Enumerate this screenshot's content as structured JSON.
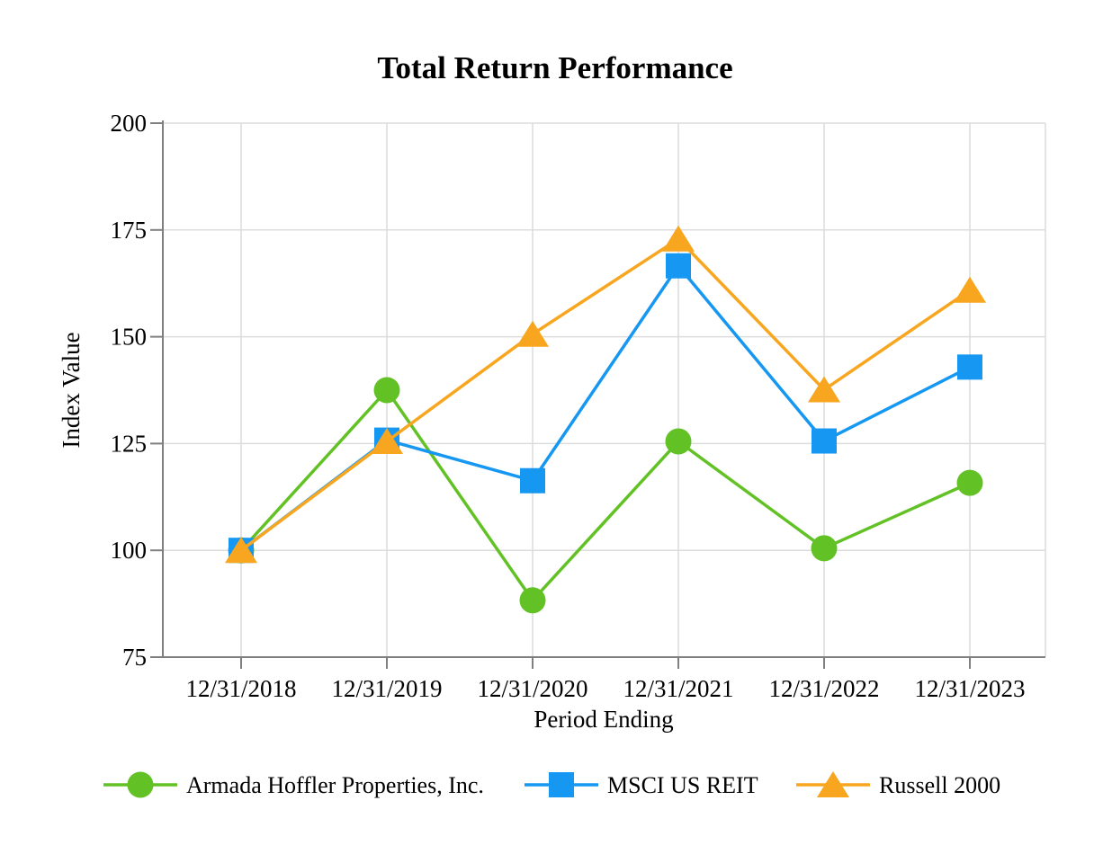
{
  "chart_data": {
    "type": "line",
    "title": "Total Return Performance",
    "xlabel": "Period Ending",
    "ylabel": "Index Value",
    "ylim": [
      75,
      200
    ],
    "yticks": [
      75,
      100,
      125,
      150,
      175,
      200
    ],
    "categories": [
      "12/31/2018",
      "12/31/2019",
      "12/31/2020",
      "12/31/2021",
      "12/31/2022",
      "12/31/2023"
    ],
    "series": [
      {
        "name": "Armada Hoffler Properties, Inc.",
        "marker": "circle",
        "color": "#62C225",
        "values": [
          100.0,
          137.5,
          88.3,
          125.5,
          100.5,
          115.8
        ]
      },
      {
        "name": "MSCI US REIT",
        "marker": "square",
        "color": "#1697F1",
        "values": [
          100.0,
          125.8,
          116.3,
          166.6,
          125.6,
          142.9
        ]
      },
      {
        "name": "Russell 2000",
        "marker": "triangle",
        "color": "#F8A61F",
        "values": [
          100.0,
          125.5,
          150.6,
          172.9,
          137.6,
          160.9
        ]
      }
    ],
    "grid": {
      "horizontal": true,
      "vertical": true,
      "color": "#DCDCDC"
    },
    "axis_color": "#7F7F7F",
    "legend_position": "bottom"
  }
}
